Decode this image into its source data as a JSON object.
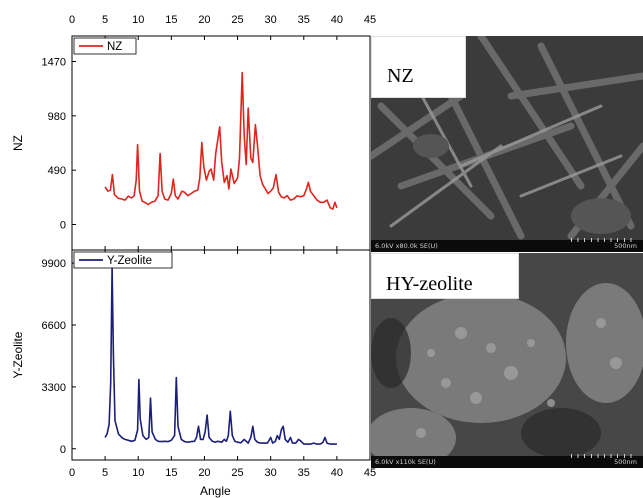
{
  "chart_data": [
    {
      "type": "line",
      "ylabel": "NZ",
      "legend": "NZ",
      "legend_placement": "top-left",
      "color": "#e0241e",
      "xlim": [
        0,
        45
      ],
      "x_ticks": [
        "0",
        "5",
        "10",
        "15",
        "20",
        "25",
        "30",
        "35",
        "40",
        "45"
      ],
      "ylim": [
        -230,
        1700
      ],
      "y_ticks": [
        {
          "v": 0,
          "label": "0"
        },
        {
          "v": 490,
          "label": "490"
        },
        {
          "v": 980,
          "label": "980"
        },
        {
          "v": 1470,
          "label": "1470"
        }
      ],
      "series": [
        {
          "name": "NZ",
          "points": [
            [
              5.0,
              340
            ],
            [
              5.4,
              300
            ],
            [
              5.8,
              310
            ],
            [
              6.1,
              450
            ],
            [
              6.4,
              270
            ],
            [
              7,
              235
            ],
            [
              7.5,
              230
            ],
            [
              8,
              220
            ],
            [
              8.5,
              255
            ],
            [
              9,
              240
            ],
            [
              9.4,
              260
            ],
            [
              9.7,
              400
            ],
            [
              9.9,
              720
            ],
            [
              10.2,
              300
            ],
            [
              10.6,
              210
            ],
            [
              11,
              200
            ],
            [
              11.5,
              180
            ],
            [
              12,
              200
            ],
            [
              12.5,
              210
            ],
            [
              13,
              260
            ],
            [
              13.3,
              640
            ],
            [
              13.6,
              300
            ],
            [
              14,
              230
            ],
            [
              14.5,
              220
            ],
            [
              15,
              280
            ],
            [
              15.3,
              410
            ],
            [
              15.6,
              260
            ],
            [
              16,
              230
            ],
            [
              16.6,
              300
            ],
            [
              17,
              290
            ],
            [
              17.5,
              260
            ],
            [
              18,
              280
            ],
            [
              18.5,
              300
            ],
            [
              19,
              310
            ],
            [
              19.3,
              420
            ],
            [
              19.6,
              740
            ],
            [
              19.9,
              520
            ],
            [
              20.3,
              400
            ],
            [
              20.7,
              480
            ],
            [
              21,
              500
            ],
            [
              21.4,
              400
            ],
            [
              21.7,
              640
            ],
            [
              22,
              760
            ],
            [
              22.3,
              880
            ],
            [
              22.6,
              560
            ],
            [
              23,
              380
            ],
            [
              23.4,
              440
            ],
            [
              23.7,
              320
            ],
            [
              24,
              500
            ],
            [
              24.5,
              370
            ],
            [
              25,
              420
            ],
            [
              25.3,
              600
            ],
            [
              25.7,
              1370
            ],
            [
              26,
              800
            ],
            [
              26.3,
              540
            ],
            [
              26.6,
              1050
            ],
            [
              27,
              600
            ],
            [
              27.3,
              560
            ],
            [
              27.7,
              900
            ],
            [
              28,
              720
            ],
            [
              28.4,
              440
            ],
            [
              28.8,
              360
            ],
            [
              29.2,
              320
            ],
            [
              29.6,
              280
            ],
            [
              30,
              300
            ],
            [
              30.4,
              330
            ],
            [
              30.8,
              450
            ],
            [
              31.2,
              290
            ],
            [
              31.6,
              250
            ],
            [
              32,
              240
            ],
            [
              32.5,
              260
            ],
            [
              33,
              220
            ],
            [
              33.5,
              230
            ],
            [
              34,
              260
            ],
            [
              34.5,
              250
            ],
            [
              35,
              260
            ],
            [
              35.4,
              320
            ],
            [
              35.7,
              380
            ],
            [
              36,
              300
            ],
            [
              36.5,
              260
            ],
            [
              37,
              220
            ],
            [
              37.5,
              200
            ],
            [
              38,
              200
            ],
            [
              38.5,
              220
            ],
            [
              39,
              150
            ],
            [
              39.4,
              140
            ],
            [
              39.7,
              200
            ],
            [
              40,
              150
            ]
          ]
        }
      ]
    },
    {
      "type": "line",
      "ylabel": "Y-Zeolite",
      "xlabel": "Angle",
      "legend": "Y-Zeolite",
      "legend_placement": "top-left",
      "color": "#1b1f7a",
      "xlim": [
        0,
        45
      ],
      "x_ticks": [
        "0",
        "5",
        "10",
        "15",
        "20",
        "25",
        "30",
        "35",
        "40",
        "45"
      ],
      "ylim": [
        -600,
        10600
      ],
      "y_ticks": [
        {
          "v": 0,
          "label": "0"
        },
        {
          "v": 3300,
          "label": "3300"
        },
        {
          "v": 6600,
          "label": "6600"
        },
        {
          "v": 9900,
          "label": "9900"
        }
      ],
      "series": [
        {
          "name": "Y-Zeolite",
          "points": [
            [
              5.0,
              600
            ],
            [
              5.3,
              800
            ],
            [
              5.6,
              1300
            ],
            [
              5.85,
              3500
            ],
            [
              6.05,
              9700
            ],
            [
              6.25,
              5000
            ],
            [
              6.5,
              1500
            ],
            [
              7,
              800
            ],
            [
              7.5,
              600
            ],
            [
              8,
              500
            ],
            [
              8.5,
              450
            ],
            [
              9,
              400
            ],
            [
              9.5,
              450
            ],
            [
              9.9,
              1000
            ],
            [
              10.1,
              3700
            ],
            [
              10.3,
              1600
            ],
            [
              10.7,
              700
            ],
            [
              11.2,
              500
            ],
            [
              11.6,
              600
            ],
            [
              11.85,
              2700
            ],
            [
              12.1,
              900
            ],
            [
              12.6,
              500
            ],
            [
              13,
              400
            ],
            [
              13.5,
              380
            ],
            [
              14,
              400
            ],
            [
              14.5,
              380
            ],
            [
              15,
              450
            ],
            [
              15.5,
              700
            ],
            [
              15.75,
              3800
            ],
            [
              16,
              1200
            ],
            [
              16.5,
              500
            ],
            [
              17,
              380
            ],
            [
              17.5,
              350
            ],
            [
              18,
              380
            ],
            [
              18.5,
              400
            ],
            [
              18.8,
              600
            ],
            [
              19.1,
              1200
            ],
            [
              19.4,
              500
            ],
            [
              19.8,
              500
            ],
            [
              20.1,
              900
            ],
            [
              20.4,
              1800
            ],
            [
              20.7,
              600
            ],
            [
              21.2,
              400
            ],
            [
              21.6,
              350
            ],
            [
              22,
              400
            ],
            [
              22.6,
              350
            ],
            [
              23,
              500
            ],
            [
              23.3,
              400
            ],
            [
              23.6,
              700
            ],
            [
              23.9,
              2000
            ],
            [
              24.2,
              700
            ],
            [
              24.6,
              400
            ],
            [
              25,
              350
            ],
            [
              25.5,
              320
            ],
            [
              26,
              500
            ],
            [
              26.3,
              400
            ],
            [
              26.6,
              300
            ],
            [
              27,
              600
            ],
            [
              27.3,
              1200
            ],
            [
              27.6,
              500
            ],
            [
              28,
              350
            ],
            [
              28.5,
              300
            ],
            [
              29,
              300
            ],
            [
              29.5,
              300
            ],
            [
              30,
              600
            ],
            [
              30.3,
              300
            ],
            [
              30.7,
              400
            ],
            [
              31,
              700
            ],
            [
              31.3,
              500
            ],
            [
              31.6,
              1000
            ],
            [
              31.9,
              1200
            ],
            [
              32.2,
              500
            ],
            [
              32.6,
              350
            ],
            [
              33,
              600
            ],
            [
              33.3,
              300
            ],
            [
              33.8,
              300
            ],
            [
              34.2,
              500
            ],
            [
              34.6,
              400
            ],
            [
              35,
              250
            ],
            [
              35.5,
              250
            ],
            [
              36,
              250
            ],
            [
              36.5,
              300
            ],
            [
              37,
              250
            ],
            [
              37.5,
              250
            ],
            [
              37.9,
              350
            ],
            [
              38.2,
              600
            ],
            [
              38.5,
              300
            ],
            [
              39,
              250
            ],
            [
              39.5,
              250
            ],
            [
              40,
              250
            ]
          ]
        }
      ]
    }
  ],
  "sem_images": [
    {
      "caption": "NZ",
      "params": "6.0kV x80.0k SE(U)",
      "scale": "500nm"
    },
    {
      "caption": "HY-zeolite",
      "params": "6.0kV x110k SE(U)",
      "scale": "500nm"
    }
  ]
}
